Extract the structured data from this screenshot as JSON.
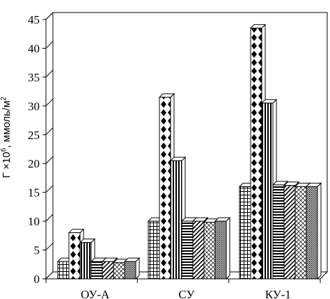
{
  "chart_data": {
    "type": "bar",
    "categories": [
      "ОУ-А",
      "СУ",
      "КУ-1"
    ],
    "series": [
      {
        "values": [
          3,
          10,
          16
        ]
      },
      {
        "values": [
          8,
          31.5,
          43.5
        ]
      },
      {
        "values": [
          6.3,
          20.5,
          30.5
        ]
      },
      {
        "values": [
          3,
          10,
          16.3
        ]
      },
      {
        "values": [
          3,
          10,
          16.2
        ]
      },
      {
        "values": [
          2.8,
          9.8,
          16
        ]
      },
      {
        "values": [
          3,
          10,
          16
        ]
      }
    ],
    "ylabel_prefix": "Г ×10",
    "ylabel_exp": "6",
    "ylabel_unit": ", ммоль/м",
    "ylabel_unit_exp": "2",
    "ylim": [
      0,
      45
    ],
    "yticks": [
      0,
      5,
      10,
      15,
      20,
      25,
      30,
      35,
      40,
      45
    ],
    "grid": true,
    "legend": "none",
    "style": "3d-patterned-monochrome"
  }
}
